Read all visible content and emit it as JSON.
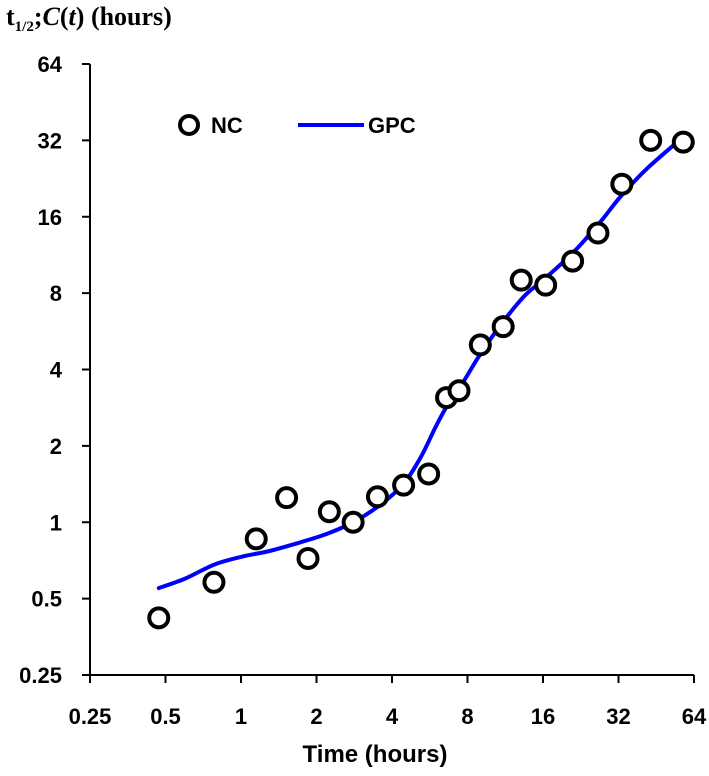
{
  "chart_data": {
    "type": "scatter",
    "ylabel": {
      "prefix": "t",
      "subscript": "1/2",
      "separator": ";",
      "func": "C",
      "open": "(",
      "var": "t",
      "close": ")",
      "units": " (hours)"
    },
    "xlabel": "Time (hours)",
    "x_scale": "log2",
    "y_scale": "log2",
    "xlim": [
      0.25,
      64
    ],
    "ylim": [
      0.25,
      64
    ],
    "x_ticks": [
      0.25,
      0.5,
      1,
      2,
      4,
      8,
      16,
      32,
      64
    ],
    "x_tick_labels": [
      "0.25",
      "0.5",
      "1",
      "2",
      "4",
      "8",
      "16",
      "32",
      "64"
    ],
    "y_ticks": [
      0.25,
      0.5,
      1,
      2,
      4,
      8,
      16,
      32,
      64
    ],
    "y_tick_labels": [
      "0.25",
      "0.5",
      "1",
      "2",
      "4",
      "8",
      "16",
      "32",
      "64"
    ],
    "grid": false,
    "legend_position": "top-left",
    "series": [
      {
        "name": "NC",
        "kind": "marker",
        "color": "#000000",
        "points": [
          {
            "x": 0.47,
            "y": 0.42
          },
          {
            "x": 0.78,
            "y": 0.58
          },
          {
            "x": 1.15,
            "y": 0.86
          },
          {
            "x": 1.52,
            "y": 1.25
          },
          {
            "x": 1.85,
            "y": 0.72
          },
          {
            "x": 2.25,
            "y": 1.1
          },
          {
            "x": 2.8,
            "y": 1.0
          },
          {
            "x": 3.5,
            "y": 1.26
          },
          {
            "x": 4.45,
            "y": 1.4
          },
          {
            "x": 5.6,
            "y": 1.55
          },
          {
            "x": 6.6,
            "y": 3.1
          },
          {
            "x": 7.4,
            "y": 3.3
          },
          {
            "x": 9.0,
            "y": 5.0
          },
          {
            "x": 11.1,
            "y": 5.9
          },
          {
            "x": 13.1,
            "y": 9.0
          },
          {
            "x": 16.4,
            "y": 8.6
          },
          {
            "x": 21.0,
            "y": 10.7
          },
          {
            "x": 26.5,
            "y": 13.8
          },
          {
            "x": 33.0,
            "y": 21.5
          },
          {
            "x": 43.0,
            "y": 32.0
          },
          {
            "x": 58.0,
            "y": 31.5
          }
        ]
      },
      {
        "name": "GPC",
        "kind": "line",
        "color": "#0000ff",
        "points": [
          {
            "x": 0.47,
            "y": 0.55
          },
          {
            "x": 0.6,
            "y": 0.6
          },
          {
            "x": 0.78,
            "y": 0.68
          },
          {
            "x": 1.0,
            "y": 0.73
          },
          {
            "x": 1.3,
            "y": 0.77
          },
          {
            "x": 1.7,
            "y": 0.83
          },
          {
            "x": 2.2,
            "y": 0.9
          },
          {
            "x": 2.8,
            "y": 1.0
          },
          {
            "x": 3.5,
            "y": 1.15
          },
          {
            "x": 4.4,
            "y": 1.4
          },
          {
            "x": 5.2,
            "y": 1.8
          },
          {
            "x": 6.0,
            "y": 2.4
          },
          {
            "x": 6.8,
            "y": 3.0
          },
          {
            "x": 7.6,
            "y": 3.5
          },
          {
            "x": 9.0,
            "y": 4.6
          },
          {
            "x": 11.0,
            "y": 6.1
          },
          {
            "x": 13.5,
            "y": 7.8
          },
          {
            "x": 16.0,
            "y": 9.0
          },
          {
            "x": 21.0,
            "y": 11.5
          },
          {
            "x": 27.0,
            "y": 15.2
          },
          {
            "x": 33.0,
            "y": 19.5
          },
          {
            "x": 42.0,
            "y": 25.0
          },
          {
            "x": 58.0,
            "y": 33.0
          }
        ]
      }
    ]
  }
}
